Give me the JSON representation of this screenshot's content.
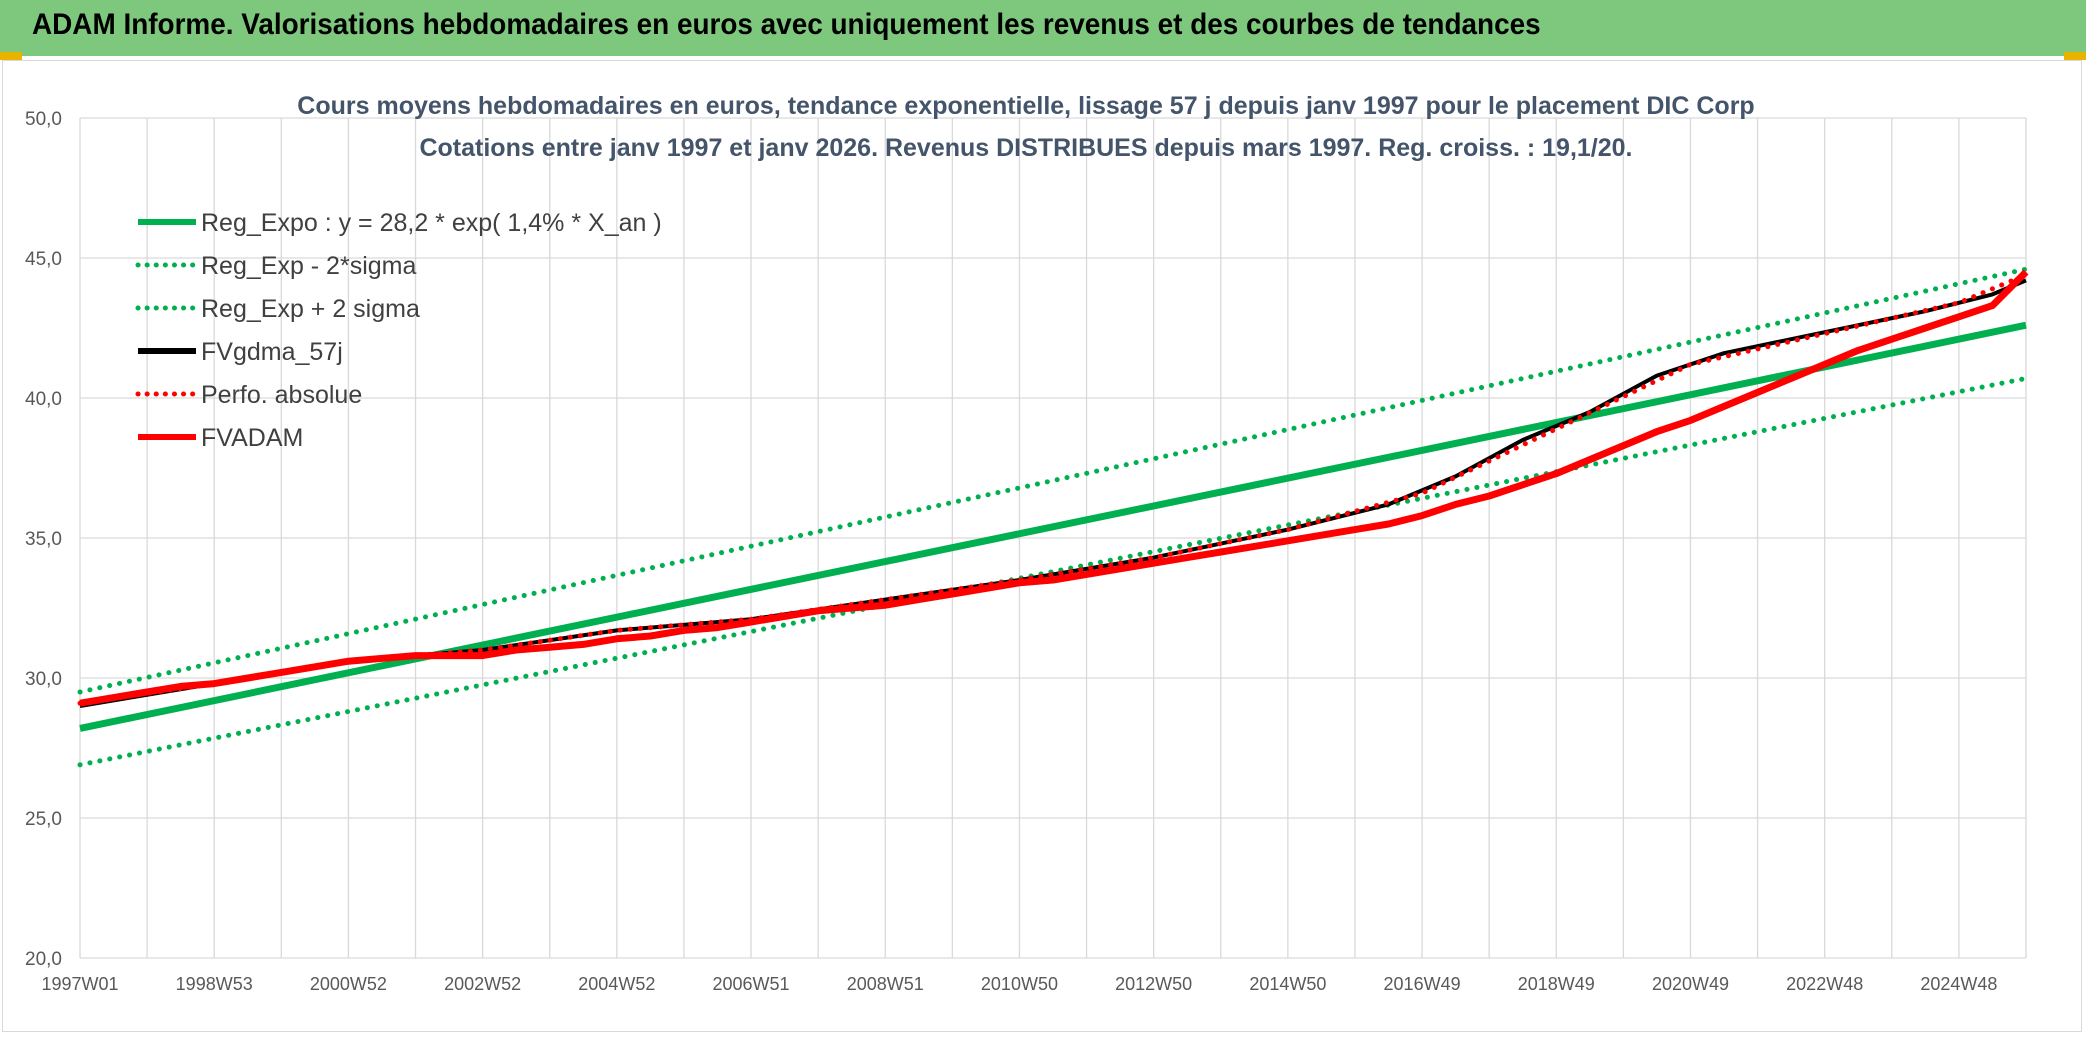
{
  "page": {
    "banner_title": "ADAM Informe. Valorisations hebdomadaires en euros avec uniquement les revenus et des courbes de tendances",
    "colors": {
      "banner": "#7ec87e",
      "accent_corner": "#e8b400"
    }
  },
  "chart_data": {
    "type": "line",
    "title_line1": "Cours moyens hebdomadaires en euros, tendance exponentielle, lissage 57 j depuis janv 1997 pour le placement DIC Corp",
    "title_line2": "Cotations entre janv 1997 et janv 2026. Revenus DISTRIBUES depuis mars 1997. Reg. croiss. : 19,1/20.",
    "ylim": [
      20,
      50
    ],
    "y_ticks": [
      "20,0",
      "25,0",
      "30,0",
      "35,0",
      "40,0",
      "45,0",
      "50,0"
    ],
    "x_ticks": [
      "1997W01",
      "1998W53",
      "2000W52",
      "2002W52",
      "2004W52",
      "2006W51",
      "2008W51",
      "2010W50",
      "2012W50",
      "2014W50",
      "2016W49",
      "2018W49",
      "2020W49",
      "2022W48",
      "2024W48"
    ],
    "xlim_years": [
      1997.0,
      2026.0
    ],
    "grid": true,
    "legend_position": "top-left",
    "series": [
      {
        "name": "Reg_Expo : y = 28,2 * exp( 1,4% *  X_an )",
        "style": "solid",
        "color": "#00b050",
        "x": [
          1997.0,
          2026.0
        ],
        "y": [
          28.2,
          42.6
        ]
      },
      {
        "name": "Reg_Exp - 2*sigma",
        "style": "dotted",
        "color": "#00b050",
        "x": [
          1997.0,
          2026.0
        ],
        "y": [
          26.9,
          40.7
        ]
      },
      {
        "name": "Reg_Exp + 2 sigma",
        "style": "dotted",
        "color": "#00b050",
        "x": [
          1997.0,
          2026.0
        ],
        "y": [
          29.5,
          44.6
        ]
      },
      {
        "name": "FVgdma_57j",
        "style": "solid",
        "color": "#000000",
        "x": [
          1997.0,
          1999.0,
          2001.0,
          2003.0,
          2005.0,
          2007.0,
          2009.0,
          2011.0,
          2013.0,
          2015.0,
          2016.5,
          2017.5,
          2018.5,
          2019.5,
          2020.5,
          2021.5,
          2022.5,
          2023.5,
          2024.5,
          2025.5,
          2026.0
        ],
        "y": [
          29.0,
          29.8,
          30.6,
          31.0,
          31.7,
          32.1,
          32.8,
          33.5,
          34.3,
          35.3,
          36.2,
          37.2,
          38.5,
          39.5,
          40.8,
          41.6,
          42.1,
          42.6,
          43.1,
          43.7,
          44.2
        ]
      },
      {
        "name": "Perfo. absolue",
        "style": "dotted",
        "color": "#ff0000",
        "x": [
          1997.0,
          1999.0,
          2001.0,
          2003.0,
          2005.0,
          2007.0,
          2009.0,
          2011.0,
          2013.0,
          2015.0,
          2017.0,
          2019.0,
          2021.0,
          2023.0,
          2025.0,
          2026.0
        ],
        "y": [
          29.1,
          29.8,
          30.6,
          31.0,
          31.7,
          32.1,
          32.8,
          33.5,
          34.3,
          35.3,
          36.6,
          38.9,
          41.2,
          42.3,
          43.4,
          44.4
        ]
      },
      {
        "name": "FVADAM",
        "style": "solid",
        "color": "#ff0000",
        "x": [
          1997.0,
          1997.5,
          1998.0,
          1998.5,
          1999.0,
          1999.5,
          2000.0,
          2000.5,
          2001.0,
          2002.0,
          2003.0,
          2003.5,
          2004.0,
          2004.5,
          2005.0,
          2005.5,
          2006.0,
          2006.5,
          2007.0,
          2007.5,
          2008.0,
          2008.5,
          2009.0,
          2009.5,
          2010.0,
          2010.5,
          2011.0,
          2011.5,
          2012.0,
          2012.5,
          2013.0,
          2013.5,
          2014.0,
          2014.5,
          2015.0,
          2015.5,
          2016.0,
          2016.5,
          2017.0,
          2017.5,
          2018.0,
          2018.5,
          2019.0,
          2019.5,
          2020.0,
          2020.5,
          2021.0,
          2021.5,
          2022.0,
          2022.5,
          2023.0,
          2023.5,
          2024.0,
          2024.5,
          2025.0,
          2025.5,
          2026.0
        ],
        "y": [
          29.1,
          29.3,
          29.5,
          29.7,
          29.8,
          30.0,
          30.2,
          30.4,
          30.6,
          30.8,
          30.8,
          31.0,
          31.1,
          31.2,
          31.4,
          31.5,
          31.7,
          31.8,
          32.0,
          32.2,
          32.4,
          32.5,
          32.6,
          32.8,
          33.0,
          33.2,
          33.4,
          33.5,
          33.7,
          33.9,
          34.1,
          34.3,
          34.5,
          34.7,
          34.9,
          35.1,
          35.3,
          35.5,
          35.8,
          36.2,
          36.5,
          36.9,
          37.3,
          37.8,
          38.3,
          38.8,
          39.2,
          39.7,
          40.2,
          40.7,
          41.2,
          41.7,
          42.1,
          42.5,
          42.9,
          43.3,
          44.5
        ]
      }
    ]
  }
}
